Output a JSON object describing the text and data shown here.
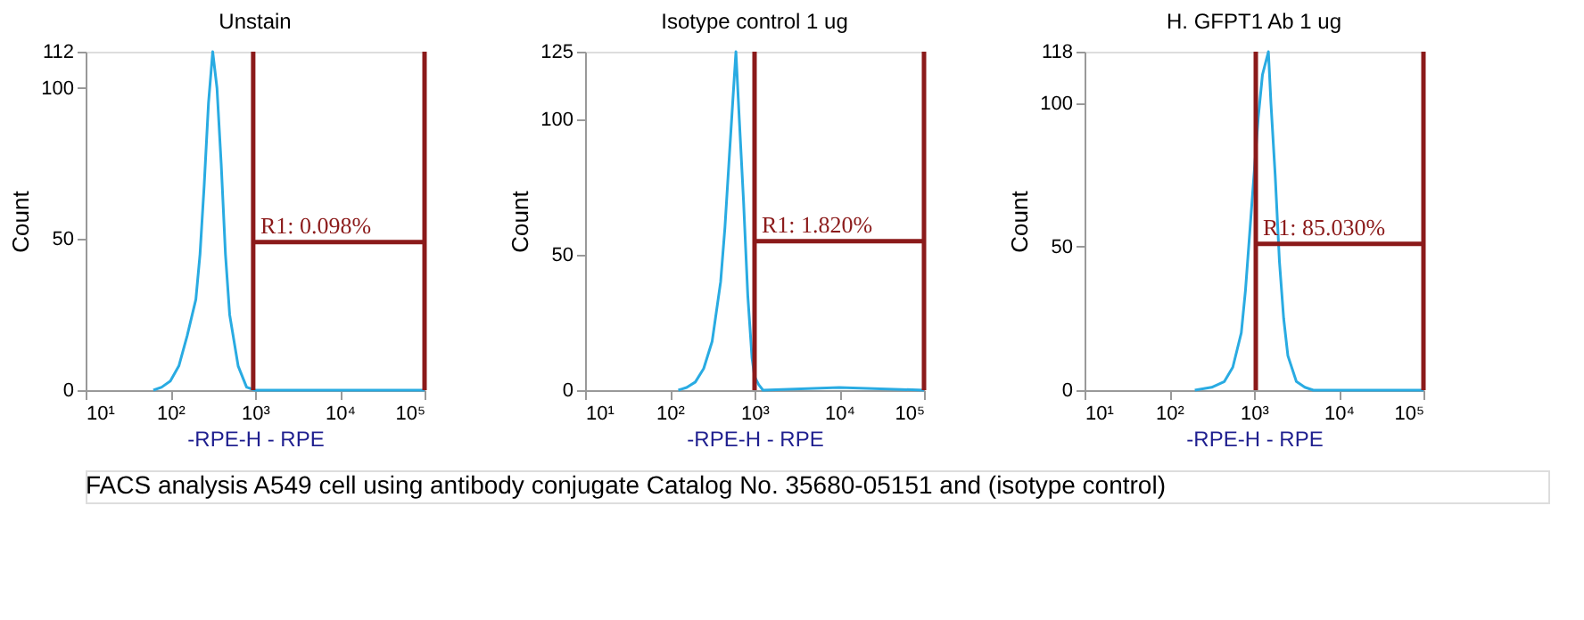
{
  "chart_data": [
    {
      "type": "line",
      "title": "Unstain",
      "xlabel": "-RPE-H - RPE",
      "ylabel": "Count",
      "log": "x",
      "grid": false,
      "xlim": [
        10,
        100000
      ],
      "xticks": [
        {
          "value": 10,
          "label": "10¹"
        },
        {
          "value": 100,
          "label": "10²"
        },
        {
          "value": 1000,
          "label": "10³"
        },
        {
          "value": 10000,
          "label": "10⁴"
        },
        {
          "value": 100000,
          "label": "10⁵"
        }
      ],
      "ylim": [
        0,
        112
      ],
      "yticks": [
        0,
        50,
        100,
        112
      ],
      "series": [
        {
          "color": "#29abe2",
          "x": [
            63,
            79,
            100,
            126,
            158,
            200,
            224,
            251,
            282,
            316,
            355,
            398,
            447,
            501,
            631,
            794,
            1000,
            10000,
            100000
          ],
          "values": [
            0,
            1,
            3,
            8,
            18,
            30,
            45,
            68,
            95,
            112,
            100,
            75,
            45,
            25,
            8,
            1,
            0,
            0,
            0
          ]
        },
        {
          "color": "#8b1a1a",
          "x": [
            950,
            100000
          ],
          "values": [
            49,
            49
          ]
        }
      ],
      "ref_lines": [
        {
          "axis": "x",
          "value": 950,
          "color": "#8b1a1a"
        },
        {
          "axis": "x",
          "value": 100000,
          "color": "#8b1a1a"
        }
      ],
      "annotations": [
        {
          "text": "R1: 0.098%",
          "x": 950,
          "y": 49
        },
        "FACS analysis A549 cell using antibody conjugate Catalog No. 35680-05151 and (isotype control)"
      ]
    },
    {
      "type": "line",
      "title": "Isotype control 1 ug",
      "xlabel": "-RPE-H - RPE",
      "ylabel": "Count",
      "log": "x",
      "grid": false,
      "xlim": [
        10,
        100000
      ],
      "xticks": [
        {
          "value": 10,
          "label": "10¹"
        },
        {
          "value": 100,
          "label": "10²"
        },
        {
          "value": 1000,
          "label": "10³"
        },
        {
          "value": 10000,
          "label": "10⁴"
        },
        {
          "value": 100000,
          "label": "10⁵"
        }
      ],
      "ylim": [
        0,
        125
      ],
      "yticks": [
        0,
        50,
        100,
        125
      ],
      "series": [
        {
          "color": "#29abe2",
          "x": [
            126,
            158,
            200,
            251,
            316,
            398,
            447,
            501,
            562,
            603,
            661,
            741,
            832,
            933,
            1000,
            1122,
            1259,
            10000,
            100000
          ],
          "values": [
            0,
            1,
            3,
            8,
            18,
            40,
            60,
            85,
            110,
            125,
            100,
            70,
            35,
            12,
            5,
            2,
            0,
            1,
            0
          ]
        },
        {
          "color": "#8b1a1a",
          "x": [
            1000,
            100000
          ],
          "values": [
            55,
            55
          ]
        }
      ],
      "ref_lines": [
        {
          "axis": "x",
          "value": 1000,
          "color": "#8b1a1a"
        },
        {
          "axis": "x",
          "value": 100000,
          "color": "#8b1a1a"
        }
      ],
      "annotations": [
        {
          "text": "R1: 1.820%",
          "x": 1000,
          "y": 55
        }
      ]
    },
    {
      "type": "line",
      "title": "H. GFPT1 Ab 1 ug",
      "xlabel": "-RPE-H - RPE",
      "ylabel": "Count",
      "log": "x",
      "grid": false,
      "xlim": [
        10,
        100000
      ],
      "xticks": [
        {
          "value": 10,
          "label": "10¹"
        },
        {
          "value": 100,
          "label": "10²"
        },
        {
          "value": 1000,
          "label": "10³"
        },
        {
          "value": 10000,
          "label": "10⁴"
        },
        {
          "value": 100000,
          "label": "10⁵"
        }
      ],
      "ylim": [
        0,
        118
      ],
      "yticks": [
        0,
        50,
        100,
        118
      ],
      "series": [
        {
          "color": "#29abe2",
          "x": [
            200,
            316,
            447,
            562,
            708,
            794,
            891,
            1000,
            1122,
            1259,
            1479,
            1585,
            1778,
            1995,
            2239,
            2512,
            3162,
            3981,
            5012,
            100000
          ],
          "values": [
            0,
            1,
            3,
            8,
            20,
            35,
            55,
            75,
            95,
            110,
            118,
            100,
            75,
            45,
            25,
            12,
            3,
            1,
            0,
            0
          ]
        },
        {
          "color": "#8b1a1a",
          "x": [
            1050,
            100000
          ],
          "values": [
            51,
            51
          ]
        }
      ],
      "ref_lines": [
        {
          "axis": "x",
          "value": 1050,
          "color": "#8b1a1a"
        },
        {
          "axis": "x",
          "value": 100000,
          "color": "#8b1a1a"
        }
      ],
      "annotations": [
        {
          "text": "R1: 85.030%",
          "x": 1050,
          "y": 51
        }
      ]
    }
  ]
}
